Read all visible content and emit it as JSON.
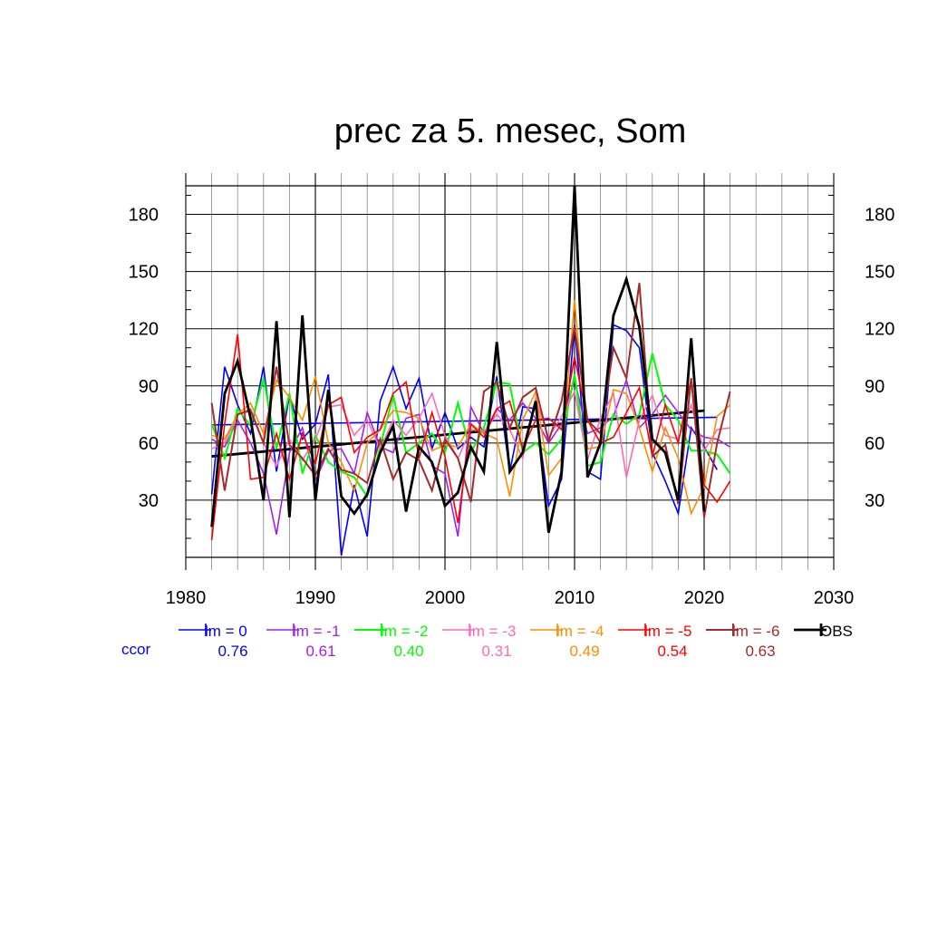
{
  "chart_data": {
    "type": "line",
    "title": "prec za 5. mesec, Som",
    "xlabel": "",
    "ylabel": "",
    "xlim": [
      1980,
      2030
    ],
    "ylim": [
      0,
      195
    ],
    "xticks": [
      1980,
      1990,
      2000,
      2010,
      2020,
      2030
    ],
    "yticks": [
      30,
      60,
      90,
      120,
      150,
      180
    ],
    "grid": true,
    "ccor_label": "ccor",
    "series": [
      {
        "name": "lm = 0",
        "color": "#0000ff",
        "ccor": "0.76",
        "width": 1.6,
        "x": [
          1982,
          1983,
          1984,
          1985,
          1986,
          1987,
          1988,
          1989,
          1990,
          1991,
          1992,
          1993,
          1994,
          1995,
          1996,
          1997,
          1998,
          1999,
          2000,
          2001,
          2002,
          2003,
          2004,
          2005,
          2006,
          2007,
          2008,
          2009,
          2010,
          2011,
          2012,
          2013,
          2014,
          2015,
          2016,
          2017,
          2018,
          2019,
          2020,
          2021
        ],
        "values": [
          33,
          100,
          80,
          65,
          100,
          45,
          85,
          62,
          70,
          96,
          1,
          38,
          11,
          82,
          100,
          78,
          94,
          57,
          76,
          57,
          63,
          58,
          95,
          45,
          79,
          78,
          27,
          41,
          122,
          45,
          41,
          122,
          119,
          110,
          55,
          40,
          23,
          68,
          58,
          46
        ]
      },
      {
        "name": "lm = -1",
        "color": "#a020f0",
        "ccor": "0.61",
        "width": 1.6,
        "x": [
          1982,
          1983,
          1984,
          1985,
          1986,
          1987,
          1988,
          1989,
          1990,
          1991,
          1992,
          1993,
          1994,
          1995,
          1996,
          1997,
          1998,
          1999,
          2000,
          2001,
          2002,
          2003,
          2004,
          2005,
          2006,
          2007,
          2008,
          2009,
          2010,
          2011,
          2012,
          2013,
          2014,
          2015,
          2016,
          2017,
          2018,
          2019,
          2020,
          2021,
          2022
        ],
        "values": [
          62,
          58,
          72,
          60,
          44,
          12,
          55,
          68,
          40,
          56,
          57,
          44,
          76,
          58,
          55,
          73,
          75,
          48,
          44,
          11,
          79,
          65,
          78,
          72,
          81,
          73,
          60,
          70,
          93,
          65,
          68,
          74,
          93,
          68,
          75,
          85,
          76,
          67,
          63,
          62,
          58
        ]
      },
      {
        "name": "lm = -2",
        "color": "#00ff00",
        "ccor": "0.40",
        "width": 2,
        "x": [
          1982,
          1983,
          1984,
          1985,
          1986,
          1987,
          1988,
          1989,
          1990,
          1991,
          1992,
          1993,
          1994,
          1995,
          1996,
          1997,
          1998,
          1999,
          2000,
          2001,
          2002,
          2003,
          2004,
          2005,
          2006,
          2007,
          2008,
          2009,
          2010,
          2011,
          2012,
          2013,
          2014,
          2015,
          2016,
          2017,
          2018,
          2019,
          2020,
          2021,
          2022
        ],
        "values": [
          70,
          52,
          78,
          69,
          94,
          57,
          86,
          44,
          64,
          50,
          45,
          42,
          32,
          58,
          85,
          55,
          60,
          65,
          55,
          81,
          55,
          68,
          92,
          91,
          55,
          60,
          54,
          62,
          96,
          48,
          50,
          75,
          70,
          75,
          107,
          80,
          72,
          56,
          56,
          54,
          44
        ]
      },
      {
        "name": "lm = -3",
        "color": "#ff69b4",
        "ccor": "0.31",
        "width": 1.6,
        "x": [
          1982,
          1983,
          1984,
          1985,
          1986,
          1987,
          1988,
          1989,
          1990,
          1991,
          1992,
          1993,
          1994,
          1995,
          1996,
          1997,
          1998,
          1999,
          2000,
          2001,
          2002,
          2003,
          2004,
          2005,
          2006,
          2007,
          2008,
          2009,
          2010,
          2011,
          2012,
          2013,
          2014,
          2015,
          2016,
          2017,
          2018,
          2019,
          2020,
          2021,
          2022
        ],
        "values": [
          57,
          60,
          75,
          78,
          60,
          48,
          62,
          51,
          62,
          79,
          80,
          64,
          72,
          57,
          72,
          64,
          73,
          86,
          64,
          52,
          67,
          66,
          75,
          67,
          52,
          83,
          63,
          74,
          87,
          51,
          73,
          86,
          42,
          72,
          85,
          64,
          62,
          80,
          56,
          67,
          68
        ]
      },
      {
        "name": "lm = -4",
        "color": "#ff8c00",
        "ccor": "0.49",
        "width": 1.6,
        "x": [
          1982,
          1983,
          1984,
          1985,
          1986,
          1987,
          1988,
          1989,
          1990,
          1991,
          1992,
          1993,
          1994,
          1995,
          1996,
          1997,
          1998,
          1999,
          2000,
          2001,
          2002,
          2003,
          2004,
          2005,
          2006,
          2007,
          2008,
          2009,
          2010,
          2011,
          2012,
          2013,
          2014,
          2015,
          2016,
          2017,
          2018,
          2019,
          2020,
          2021,
          2022
        ],
        "values": [
          64,
          62,
          75,
          81,
          65,
          93,
          84,
          72,
          95,
          60,
          50,
          35,
          60,
          67,
          77,
          76,
          73,
          56,
          59,
          58,
          70,
          65,
          62,
          32,
          72,
          87,
          43,
          52,
          135,
          57,
          58,
          88,
          86,
          68,
          45,
          68,
          52,
          23,
          37,
          74,
          80
        ]
      },
      {
        "name": "lm = -5",
        "color": "#ff0000",
        "ccor": "0.54",
        "width": 1.6,
        "x": [
          1982,
          1983,
          1984,
          1985,
          1986,
          1987,
          1988,
          1989,
          1990,
          1991,
          1992,
          1993,
          1994,
          1995,
          1996,
          1997,
          1998,
          1999,
          2000,
          2001,
          2002,
          2003,
          2004,
          2005,
          2006,
          2007,
          2008,
          2009,
          2010,
          2011,
          2012,
          2013,
          2014,
          2015,
          2016,
          2017,
          2018,
          2019,
          2020,
          2021,
          2022
        ],
        "values": [
          9,
          70,
          117,
          41,
          42,
          65,
          41,
          65,
          49,
          80,
          84,
          55,
          63,
          67,
          86,
          92,
          52,
          76,
          53,
          18,
          70,
          63,
          78,
          82,
          57,
          72,
          73,
          67,
          105,
          72,
          60,
          63,
          76,
          89,
          53,
          80,
          60,
          94,
          38,
          29,
          40
        ]
      },
      {
        "name": "lm = -6",
        "color": "#a52a2a",
        "ccor": "0.63",
        "width": 2,
        "x": [
          1982,
          1983,
          1984,
          1985,
          1986,
          1987,
          1988,
          1989,
          1990,
          1991,
          1992,
          1993,
          1994,
          1995,
          1996,
          1997,
          1998,
          1999,
          2000,
          2001,
          2002,
          2003,
          2004,
          2005,
          2006,
          2007,
          2008,
          2009,
          2010,
          2011,
          2012,
          2013,
          2014,
          2015,
          2016,
          2017,
          2018,
          2019,
          2020,
          2021,
          2022
        ],
        "values": [
          81,
          35,
          75,
          77,
          60,
          100,
          59,
          52,
          43,
          57,
          46,
          44,
          39,
          62,
          41,
          55,
          51,
          35,
          62,
          52,
          29,
          87,
          92,
          68,
          84,
          89,
          61,
          82,
          121,
          72,
          65,
          110,
          94,
          144,
          53,
          59,
          28,
          94,
          21,
          60,
          87
        ]
      },
      {
        "name": "OBS",
        "color": "#000000",
        "ccor": "",
        "width": 2.8,
        "x": [
          1982,
          1983,
          1984,
          1985,
          1986,
          1987,
          1988,
          1989,
          1990,
          1991,
          1992,
          1993,
          1994,
          1995,
          1996,
          1997,
          1998,
          1999,
          2000,
          2001,
          2002,
          2003,
          2004,
          2005,
          2006,
          2007,
          2008,
          2009,
          2010,
          2011,
          2012,
          2013,
          2014,
          2015,
          2016,
          2017,
          2018,
          2019,
          2020
        ],
        "values": [
          16,
          86,
          103,
          73,
          30,
          124,
          21,
          127,
          30,
          88,
          32,
          23,
          33,
          55,
          69,
          24,
          58,
          50,
          27,
          34,
          58,
          45,
          113,
          45,
          55,
          82,
          13,
          45,
          195,
          42,
          60,
          127,
          146,
          121,
          62,
          55,
          30,
          115,
          24
        ]
      }
    ],
    "trend_lines": [
      {
        "color": "#0000ff",
        "x": [
          1982,
          2021
        ],
        "values": [
          69.5,
          73.5
        ],
        "width": 1.6
      },
      {
        "color": "#000000",
        "x": [
          1982,
          2020
        ],
        "values": [
          53,
          77
        ],
        "width": 2.8
      }
    ]
  }
}
